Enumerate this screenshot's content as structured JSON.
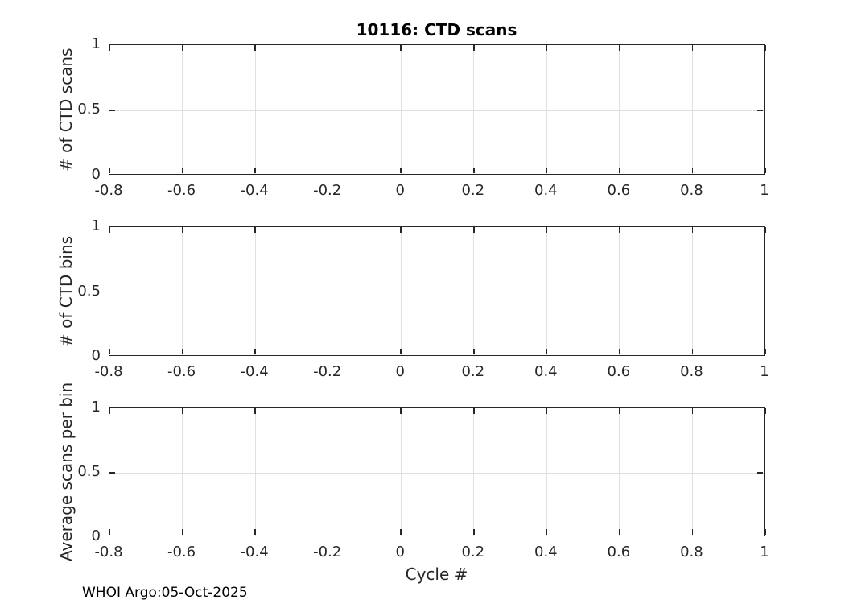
{
  "figure": {
    "title": "10116: CTD scans",
    "xlabel": "Cycle #",
    "footer": "WHOI Argo:05-Oct-2025",
    "colors": {
      "axis": "#262626",
      "grid": "#e0e0e0",
      "text": "#262626",
      "title": "#000000",
      "background": "#ffffff"
    }
  },
  "chart_data": [
    {
      "type": "line",
      "title": "10116: CTD scans",
      "xlabel": "",
      "ylabel": "# of CTD scans",
      "xlim": [
        -0.8,
        1
      ],
      "ylim": [
        0,
        1
      ],
      "xticks": [
        -0.8,
        -0.6,
        -0.4,
        -0.2,
        0,
        0.2,
        0.4,
        0.6,
        0.8,
        1
      ],
      "xtick_labels": [
        "-0.8",
        "-0.6",
        "-0.4",
        "-0.2",
        "0",
        "0.2",
        "0.4",
        "0.6",
        "0.8",
        "1"
      ],
      "yticks": [
        0,
        0.5,
        1
      ],
      "ytick_labels": [
        "0",
        "0.5",
        "1"
      ],
      "grid": true,
      "legend": null,
      "series": []
    },
    {
      "type": "line",
      "title": "",
      "xlabel": "",
      "ylabel": "# of CTD bins",
      "xlim": [
        -0.8,
        1
      ],
      "ylim": [
        0,
        1
      ],
      "xticks": [
        -0.8,
        -0.6,
        -0.4,
        -0.2,
        0,
        0.2,
        0.4,
        0.6,
        0.8,
        1
      ],
      "xtick_labels": [
        "-0.8",
        "-0.6",
        "-0.4",
        "-0.2",
        "0",
        "0.2",
        "0.4",
        "0.6",
        "0.8",
        "1"
      ],
      "yticks": [
        0,
        0.5,
        1
      ],
      "ytick_labels": [
        "0",
        "0.5",
        "1"
      ],
      "grid": true,
      "legend": null,
      "series": []
    },
    {
      "type": "line",
      "title": "",
      "xlabel": "Cycle #",
      "ylabel": "Average scans per bin",
      "xlim": [
        -0.8,
        1
      ],
      "ylim": [
        0,
        1
      ],
      "xticks": [
        -0.8,
        -0.6,
        -0.4,
        -0.2,
        0,
        0.2,
        0.4,
        0.6,
        0.8,
        1
      ],
      "xtick_labels": [
        "-0.8",
        "-0.6",
        "-0.4",
        "-0.2",
        "0",
        "0.2",
        "0.4",
        "0.6",
        "0.8",
        "1"
      ],
      "yticks": [
        0,
        0.5,
        1
      ],
      "ytick_labels": [
        "0",
        "0.5",
        "1"
      ],
      "grid": true,
      "legend": null,
      "series": []
    }
  ]
}
